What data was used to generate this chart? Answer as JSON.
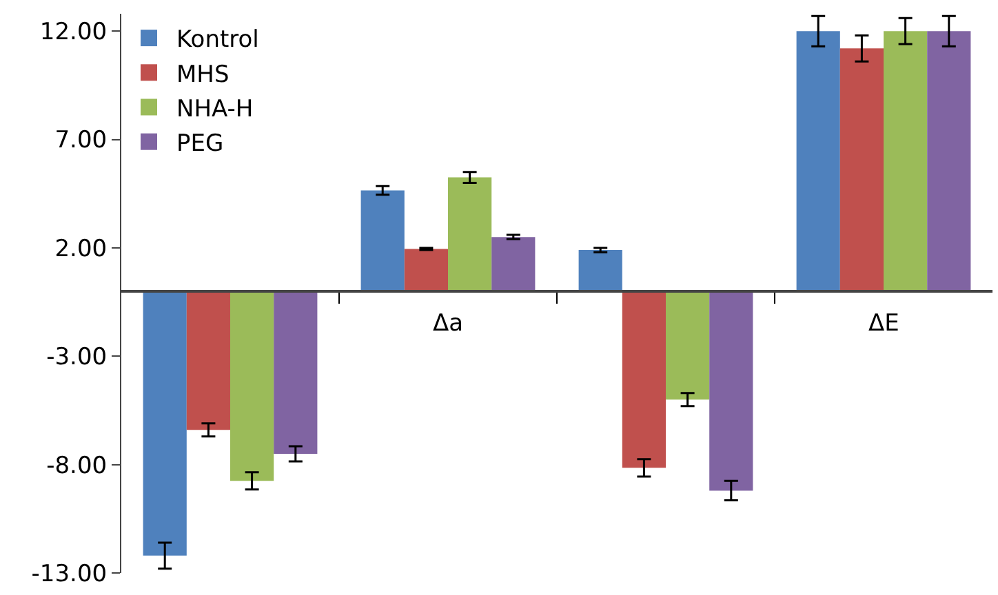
{
  "chart_data": {
    "type": "bar",
    "categories": [
      null,
      "Δa",
      null,
      "ΔE"
    ],
    "series": [
      {
        "name": "Kontrol",
        "color": "#4f81bd",
        "values": [
          -12.2,
          4.65,
          1.9,
          12.0
        ],
        "errors": [
          0.6,
          0.2,
          0.1,
          0.7
        ]
      },
      {
        "name": "MHS",
        "color": "#c0504d",
        "values": [
          -6.4,
          1.95,
          -8.15,
          11.2
        ],
        "errors": [
          0.3,
          0.05,
          0.4,
          0.6
        ]
      },
      {
        "name": "NHA-H",
        "color": "#9bbb59",
        "values": [
          -8.75,
          5.25,
          -5.0,
          12.0
        ],
        "errors": [
          0.4,
          0.25,
          0.3,
          0.6
        ]
      },
      {
        "name": "PEG",
        "color": "#8064a2",
        "values": [
          -7.5,
          2.5,
          -9.2,
          12.0
        ],
        "errors": [
          0.35,
          0.1,
          0.45,
          0.7
        ]
      }
    ],
    "ylim": [
      -13,
      12.8
    ],
    "yticks": [
      {
        "value": 12,
        "label": "12.00"
      },
      {
        "value": 7,
        "label": "7.00"
      },
      {
        "value": 2,
        "label": "2.00"
      },
      {
        "value": -3,
        "label": "-3.00"
      },
      {
        "value": -8,
        "label": "-8.00"
      },
      {
        "value": -13,
        "label": "-13.00"
      }
    ],
    "legend": "top left",
    "grid": false
  }
}
